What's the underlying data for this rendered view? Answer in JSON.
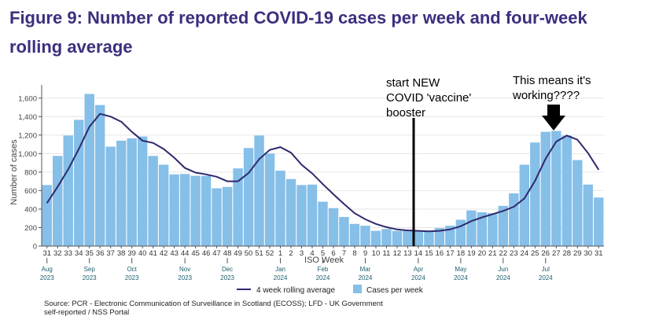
{
  "title": "Figure 9: Number of reported COVID-19 cases per week and four-week rolling average",
  "source_line1": "Source: PCR - Electronic Communication of Surveillance in Scotland (ECOSS); LFD - UK Government",
  "source_line2": "self-reported / NSS Portal",
  "annotations": {
    "booster_line1": "start NEW",
    "booster_line2": "COVID 'vaccine'",
    "booster_line3": "booster",
    "working_line1": "This means it's",
    "working_line2": "working????"
  },
  "colors": {
    "bar": "#86bfe8",
    "line": "#2e2a6e",
    "title": "#3c2f7e",
    "axis": "#555555",
    "month": "#1a5e6e",
    "annotation": "#000000"
  },
  "chart_data": {
    "type": "bar",
    "xlabel": "ISO Week",
    "ylabel": "Number of cases",
    "ylim": [
      0,
      1700
    ],
    "yticks": [
      0,
      200,
      400,
      600,
      800,
      1000,
      1200,
      1400,
      1600
    ],
    "ytick_labels": [
      "0",
      "200",
      "400",
      "600",
      "800",
      "1,000",
      "1,200",
      "1,400",
      "1,600"
    ],
    "categories": [
      "31",
      "32",
      "33",
      "34",
      "35",
      "36",
      "37",
      "38",
      "39",
      "40",
      "41",
      "42",
      "43",
      "44",
      "45",
      "46",
      "47",
      "48",
      "49",
      "50",
      "51",
      "52",
      "1",
      "2",
      "3",
      "4",
      "5",
      "6",
      "7",
      "8",
      "9",
      "10",
      "11",
      "12",
      "13",
      "14",
      "15",
      "16",
      "17",
      "18",
      "19",
      "20",
      "21",
      "22",
      "23",
      "24",
      "25",
      "26",
      "27",
      "28",
      "29",
      "30",
      "31"
    ],
    "month_labels": [
      {
        "at": "31",
        "month": "Aug",
        "year": "2023"
      },
      {
        "at": "35",
        "month": "Sep",
        "year": "2023"
      },
      {
        "at": "39",
        "month": "Oct",
        "year": "2023"
      },
      {
        "at": "44",
        "month": "Nov",
        "year": "2023"
      },
      {
        "at": "48",
        "month": "Dec",
        "year": "2023"
      },
      {
        "at": "1",
        "month": "Jan",
        "year": "2024"
      },
      {
        "at": "5",
        "month": "Feb",
        "year": "2024"
      },
      {
        "at": "9",
        "month": "Mar",
        "year": "2024"
      },
      {
        "at": "14",
        "month": "Apr",
        "year": "2024"
      },
      {
        "at": "18",
        "month": "May",
        "year": "2024"
      },
      {
        "at": "22",
        "month": "Jun",
        "year": "2024"
      },
      {
        "at": "26",
        "month": "Jul",
        "year": "2024"
      }
    ],
    "series": [
      {
        "name": "Cases per week",
        "kind": "bar",
        "values": [
          660,
          975,
          1195,
          1365,
          1645,
          1525,
          1075,
          1140,
          1165,
          1185,
          975,
          880,
          775,
          780,
          760,
          760,
          625,
          640,
          840,
          1060,
          1195,
          1000,
          815,
          725,
          660,
          665,
          480,
          410,
          315,
          240,
          220,
          165,
          185,
          165,
          165,
          160,
          155,
          195,
          220,
          285,
          385,
          365,
          355,
          435,
          570,
          880,
          1120,
          1235,
          1245,
          1195,
          930,
          665,
          525
        ]
      },
      {
        "name": "4 week rolling average",
        "kind": "line",
        "values": [
          465,
          640,
          830,
          1050,
          1290,
          1430,
          1400,
          1345,
          1235,
          1140,
          1115,
          1050,
          955,
          845,
          795,
          775,
          750,
          700,
          700,
          790,
          940,
          1040,
          1070,
          1010,
          880,
          785,
          670,
          560,
          455,
          355,
          290,
          240,
          205,
          180,
          170,
          165,
          160,
          165,
          180,
          215,
          270,
          310,
          345,
          380,
          425,
          515,
          705,
          945,
          1130,
          1195,
          1150,
          1005,
          825
        ]
      }
    ],
    "legend": {
      "placement": "bottom"
    }
  }
}
